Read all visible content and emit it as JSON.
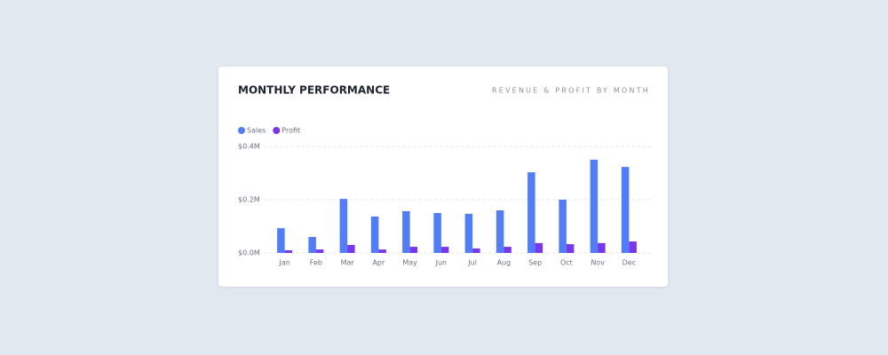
{
  "chart_data": {
    "type": "bar",
    "title": "MONTHLY PERFORMANCE",
    "subtitle": "REVENUE & PROFIT BY MONTH",
    "categories": [
      "Jan",
      "Feb",
      "Mar",
      "Apr",
      "May",
      "Jun",
      "Jul",
      "Aug",
      "Sep",
      "Oct",
      "Nov",
      "Dec"
    ],
    "series": [
      {
        "name": "Sales",
        "color": "#4f7dfc",
        "values": [
          93000,
          60000,
          203000,
          137000,
          157000,
          150000,
          147000,
          160000,
          303000,
          200000,
          350000,
          323000
        ]
      },
      {
        "name": "Profit",
        "color": "#7a35ef",
        "values": [
          10000,
          13000,
          30000,
          13000,
          23000,
          23000,
          17000,
          23000,
          37000,
          33000,
          37000,
          43000
        ]
      }
    ],
    "ylim": [
      0,
      400000
    ],
    "yticks": [
      {
        "value": 0,
        "label": "$0.0M"
      },
      {
        "value": 200000,
        "label": "$0.2M"
      },
      {
        "value": 400000,
        "label": "$0.4M"
      }
    ],
    "grid": true,
    "legend": "top-left"
  }
}
